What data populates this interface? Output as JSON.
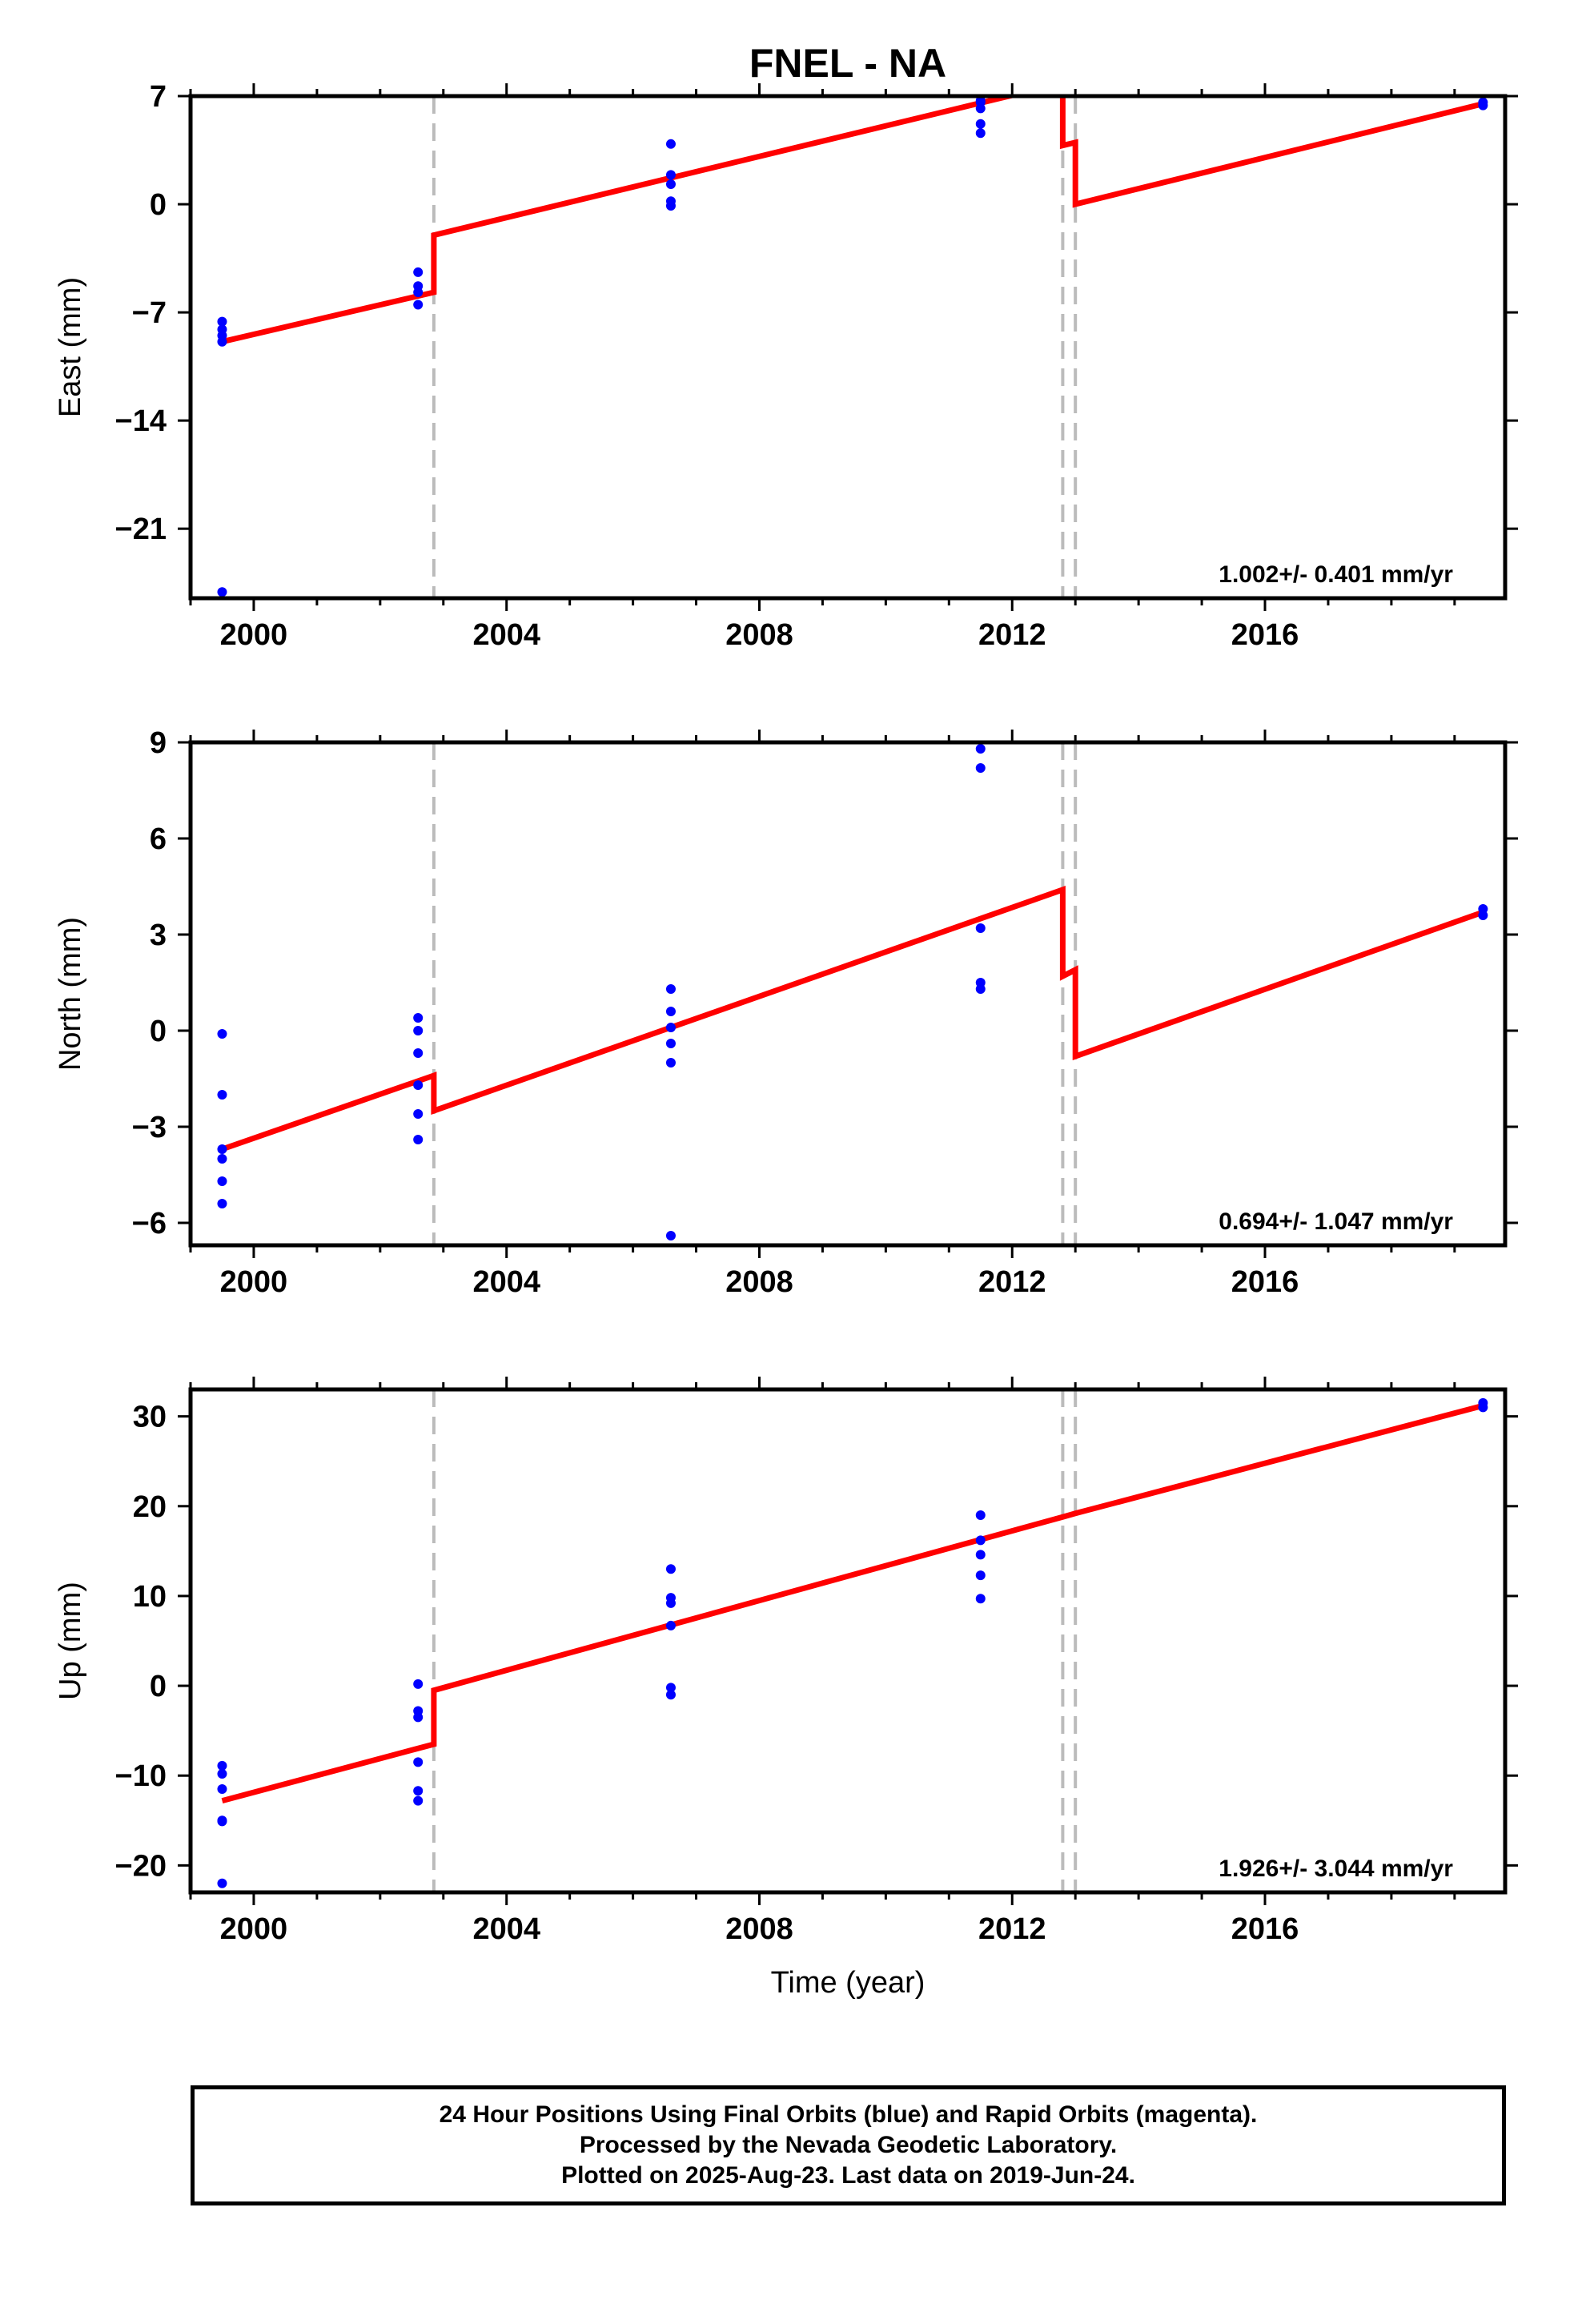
{
  "title": "FNEL - NA",
  "xlabel": "Time (year)",
  "x_ticks": [
    2000,
    2004,
    2008,
    2012,
    2016
  ],
  "x_range": [
    1999.0,
    2019.8
  ],
  "colors": {
    "final_orbits": "#0000ff",
    "model": "#ff0000",
    "offsets": "#bbbbbb",
    "frame": "#000000"
  },
  "footer": {
    "line1": "24 Hour Positions Using Final Orbits (blue) and Rapid Orbits (magenta).",
    "line2": "Processed by the Nevada Geodetic Laboratory.",
    "line3": "Plotted on 2025-Aug-23. Last data on 2019-Jun-24."
  },
  "chart_data": [
    {
      "type": "scatter",
      "ylabel": "East (mm)",
      "ylim": [
        -25.5,
        7.0
      ],
      "y_ticks": [
        7,
        0,
        -7,
        -14,
        -21
      ],
      "y_tick_labels": [
        "7",
        "0",
        "−7",
        "−14",
        "−21"
      ],
      "rate_label": "1.002+/- 0.401 mm/yr",
      "offset_epochs": [
        2002.85,
        2012.8,
        2013.0
      ],
      "series": [
        {
          "kind": "points",
          "x": [
            1999.5,
            1999.5,
            1999.5,
            1999.5,
            1999.5,
            2002.6,
            2002.6,
            2002.6,
            2002.6,
            2006.6,
            2006.6,
            2006.6,
            2006.6,
            2006.6,
            2011.5,
            2011.5,
            2011.5,
            2011.5,
            2011.5,
            2019.45,
            2019.45
          ],
          "y": [
            -7.6,
            -8.1,
            -8.5,
            -8.9,
            -25.1,
            -4.4,
            -5.3,
            -5.7,
            -6.5,
            3.9,
            1.9,
            1.3,
            0.2,
            -0.1,
            6.7,
            6.2,
            5.2,
            4.6,
            6.6,
            6.6,
            6.4
          ]
        },
        {
          "kind": "model",
          "x": [
            1999.5,
            2002.85,
            2002.85,
            2012.35,
            2012.8,
            2012.8,
            2013.0,
            2013.0,
            2019.45
          ],
          "y": [
            -8.9,
            -5.7,
            -2.0,
            7.4,
            7.8,
            3.8,
            4.0,
            0.0,
            6.5
          ]
        }
      ]
    },
    {
      "type": "scatter",
      "ylabel": "North (mm)",
      "ylim": [
        -6.7,
        9.0
      ],
      "y_ticks": [
        9,
        6,
        3,
        0,
        -3,
        -6
      ],
      "y_tick_labels": [
        "9",
        "6",
        "3",
        "0",
        "−3",
        "−6"
      ],
      "rate_label": "0.694+/- 1.047 mm/yr",
      "offset_epochs": [
        2002.85,
        2012.8,
        2013.0
      ],
      "series": [
        {
          "kind": "points",
          "x": [
            1999.5,
            1999.5,
            1999.5,
            1999.5,
            1999.5,
            1999.5,
            2002.6,
            2002.6,
            2002.6,
            2002.6,
            2002.6,
            2002.6,
            2006.6,
            2006.6,
            2006.6,
            2006.6,
            2006.6,
            2006.6,
            2011.5,
            2011.5,
            2011.5,
            2011.5,
            2011.5,
            2019.45,
            2019.45
          ],
          "y": [
            -0.1,
            -2.0,
            -3.7,
            -4.0,
            -4.7,
            -5.4,
            0.4,
            0.0,
            -0.7,
            -1.7,
            -2.6,
            -3.4,
            1.3,
            0.6,
            0.1,
            -0.4,
            -1.0,
            -6.4,
            8.8,
            8.2,
            3.2,
            1.5,
            1.3,
            3.8,
            3.6
          ]
        },
        {
          "kind": "model",
          "x": [
            1999.5,
            2002.85,
            2002.85,
            2012.8,
            2012.8,
            2013.0,
            2013.0,
            2019.45
          ],
          "y": [
            -3.7,
            -1.4,
            -2.5,
            4.4,
            1.7,
            1.9,
            -0.8,
            3.7
          ]
        }
      ]
    },
    {
      "type": "scatter",
      "ylabel": "Up (mm)",
      "ylim": [
        -23,
        33
      ],
      "y_ticks": [
        30,
        20,
        10,
        0,
        -10,
        -20
      ],
      "y_tick_labels": [
        "30",
        "20",
        "10",
        "0",
        "−10",
        "−20"
      ],
      "rate_label": "1.926+/- 3.044 mm/yr",
      "offset_epochs": [
        2002.85,
        2012.8,
        2013.0
      ],
      "series": [
        {
          "kind": "points",
          "x": [
            1999.5,
            1999.5,
            1999.5,
            1999.5,
            1999.5,
            1999.5,
            2002.6,
            2002.6,
            2002.6,
            2002.6,
            2002.6,
            2002.6,
            2006.6,
            2006.6,
            2006.6,
            2006.6,
            2006.6,
            2006.6,
            2011.5,
            2011.5,
            2011.5,
            2011.5,
            2011.5,
            2019.45,
            2019.45
          ],
          "y": [
            -8.9,
            -9.8,
            -11.5,
            -15.0,
            -15.1,
            -22.0,
            0.2,
            -2.8,
            -3.5,
            -8.5,
            -11.7,
            -12.8,
            13.0,
            9.8,
            9.2,
            6.7,
            -0.2,
            -1.0,
            19.0,
            16.2,
            14.6,
            12.3,
            9.7,
            31.5,
            31.0
          ]
        },
        {
          "kind": "model",
          "x": [
            1999.5,
            2002.85,
            2002.85,
            2012.8,
            2013.0,
            2019.45
          ],
          "y": [
            -12.8,
            -6.5,
            -0.5,
            18.8,
            19.2,
            31.2
          ]
        }
      ]
    }
  ]
}
